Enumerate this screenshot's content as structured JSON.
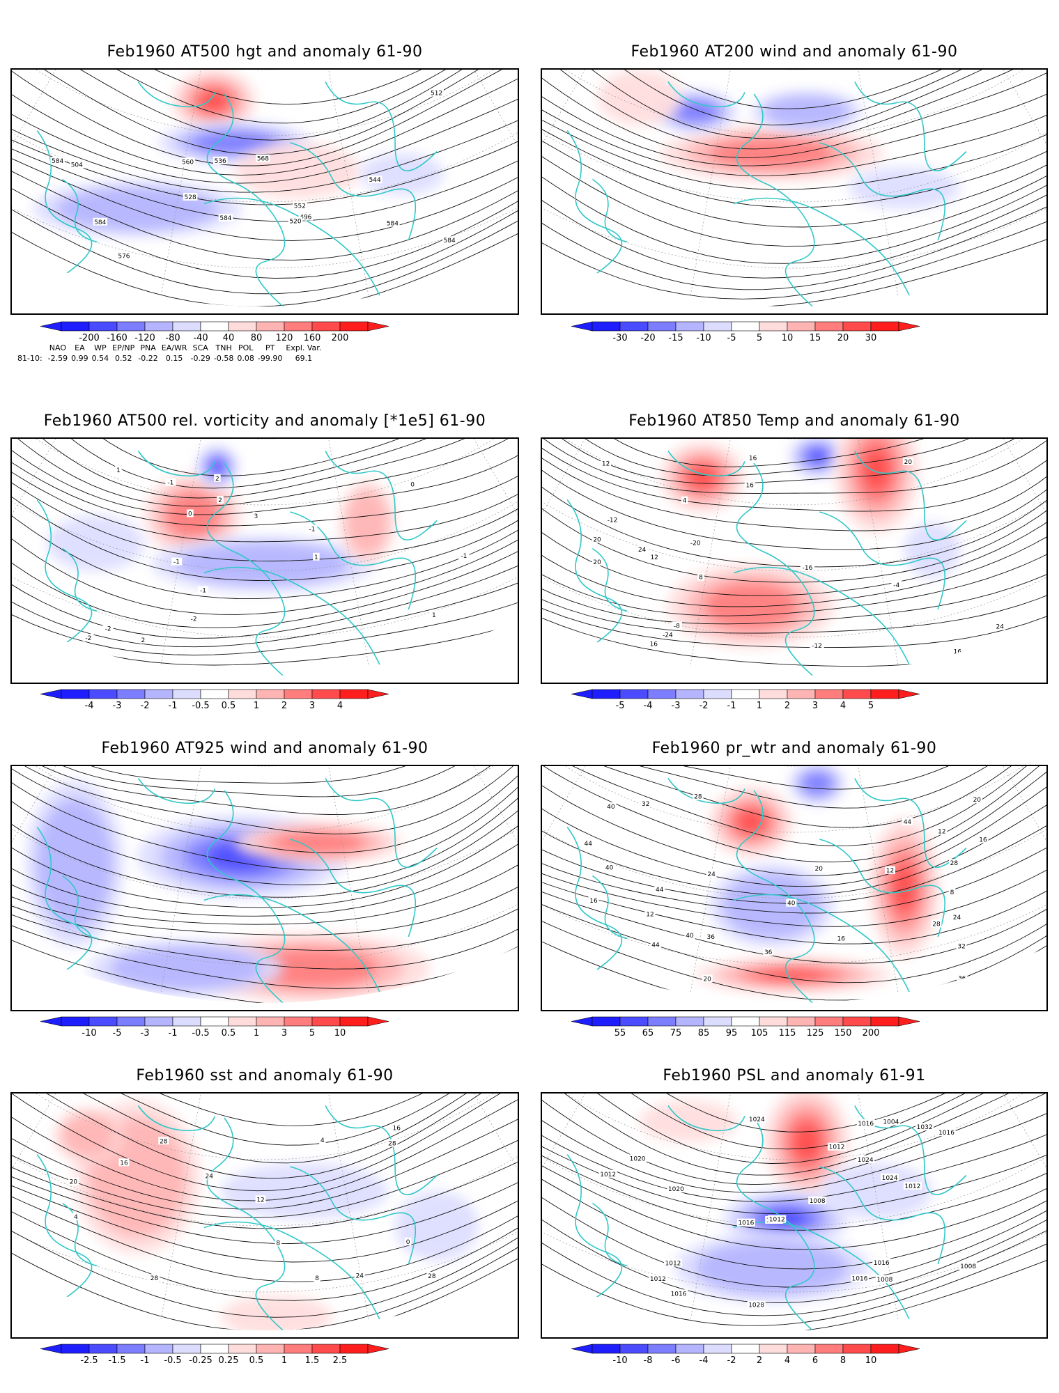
{
  "colors": {
    "coast": "#30c8c8",
    "contour": "#111111",
    "frame": "#000000",
    "scale": [
      "#1e1eff",
      "#4b4bff",
      "#7d7dff",
      "#b4b4ff",
      "#dcdcff",
      "#ffffff",
      "#ffdcdc",
      "#ffb4b4",
      "#ff7d7d",
      "#ff4b4b",
      "#ff1e1e"
    ]
  },
  "panels": [
    {
      "id": "p1",
      "title": "Feb1960 AT500 hgt and anomaly 61-90",
      "colorbar_ticks": [
        "-200",
        "-160",
        "-120",
        "-80",
        "-40",
        "40",
        "80",
        "120",
        "160",
        "200"
      ],
      "contour_labels": [
        "496",
        "504",
        "512",
        "520",
        "528",
        "536",
        "544",
        "552",
        "560",
        "568",
        "576",
        "584",
        "584",
        "584",
        "584",
        "584"
      ],
      "anomalies": [
        {
          "sign": "pos",
          "level": 4
        },
        {
          "sign": "neg",
          "level": 3
        },
        {
          "sign": "neg",
          "level": 2
        },
        {
          "sign": "pos",
          "level": 1
        },
        {
          "sign": "neg",
          "level": 1
        }
      ]
    },
    {
      "id": "p2",
      "title": "Feb1960 AT200 wind and anomaly 61-90",
      "colorbar_ticks": [
        "-30",
        "-20",
        "-15",
        "-10",
        "-5",
        "5",
        "10",
        "15",
        "20",
        "30"
      ],
      "contour_labels": [],
      "anomalies": [
        {
          "sign": "pos",
          "level": 3
        },
        {
          "sign": "neg",
          "level": 3
        },
        {
          "sign": "neg",
          "level": 2
        },
        {
          "sign": "pos",
          "level": 1
        },
        {
          "sign": "neg",
          "level": 1
        }
      ]
    },
    {
      "id": "p3",
      "title": "Feb1960 AT500 rel. vorticity and anomaly [*1e5] 61-90",
      "colorbar_ticks": [
        "-4",
        "-3",
        "-2",
        "-1",
        "-0.5",
        "0.5",
        "1",
        "2",
        "3",
        "4"
      ],
      "contour_labels": [
        "-2",
        "2",
        "3",
        "2",
        "1",
        "-1",
        "-2",
        "-1",
        "-1",
        "-1",
        "0",
        "0",
        "-2",
        "2",
        "1",
        "-1",
        "1"
      ],
      "anomalies": [
        {
          "sign": "pos",
          "level": 3
        },
        {
          "sign": "neg",
          "level": 4
        },
        {
          "sign": "neg",
          "level": 2
        },
        {
          "sign": "pos",
          "level": 2
        },
        {
          "sign": "neg",
          "level": 1
        }
      ]
    },
    {
      "id": "p4",
      "title": "Feb1960 AT850 Temp and anomaly 61-90",
      "colorbar_ticks": [
        "-5",
        "-4",
        "-3",
        "-2",
        "-1",
        "1",
        "2",
        "3",
        "4",
        "5"
      ],
      "contour_labels": [
        "-24",
        "-12",
        "-20",
        "-16",
        "-12",
        "-8",
        "-4",
        "4",
        "8",
        "12",
        "16",
        "20",
        "24",
        "16",
        "20",
        "24",
        "20",
        "16",
        "12",
        "16"
      ],
      "anomalies": [
        {
          "sign": "pos",
          "level": 4
        },
        {
          "sign": "neg",
          "level": 4
        },
        {
          "sign": "pos",
          "level": 4
        },
        {
          "sign": "pos",
          "level": 3
        },
        {
          "sign": "neg",
          "level": 1
        }
      ]
    },
    {
      "id": "p5",
      "title": "Feb1960 AT925 wind and anomaly 61-90",
      "colorbar_ticks": [
        "-10",
        "-5",
        "-3",
        "-1",
        "-0.5",
        "0.5",
        "1",
        "3",
        "5",
        "10"
      ],
      "contour_labels": [],
      "anomalies": [
        {
          "sign": "neg",
          "level": 4
        },
        {
          "sign": "pos",
          "level": 3
        },
        {
          "sign": "neg",
          "level": 2
        },
        {
          "sign": "pos",
          "level": 3
        },
        {
          "sign": "neg",
          "level": 2
        }
      ]
    },
    {
      "id": "p6",
      "title": "Feb1960 pr_wtr and anomaly 61-90",
      "colorbar_ticks": [
        "55",
        "65",
        "75",
        "85",
        "95",
        "105",
        "115",
        "125",
        "150",
        "200"
      ],
      "contour_labels": [
        "20",
        "24",
        "28",
        "44",
        "32",
        "36",
        "40",
        "44",
        "40",
        "16",
        "20",
        "16",
        "12",
        "8",
        "12",
        "16",
        "20",
        "24",
        "28",
        "32",
        "36",
        "40",
        "44",
        "44",
        "36",
        "40",
        "28",
        "12"
      ],
      "anomalies": [
        {
          "sign": "pos",
          "level": 4
        },
        {
          "sign": "neg",
          "level": 3
        },
        {
          "sign": "pos",
          "level": 4
        },
        {
          "sign": "neg",
          "level": 2
        },
        {
          "sign": "pos",
          "level": 4
        }
      ]
    },
    {
      "id": "p7",
      "title": "Feb1960 sst and anomaly 61-90",
      "colorbar_ticks": [
        "-2.5",
        "-1.5",
        "-1",
        "-0.5",
        "-0.25",
        "0.25",
        "0.5",
        "1",
        "1.5",
        "2.5"
      ],
      "contour_labels": [
        "28",
        "4",
        "8",
        "12",
        "16",
        "20",
        "24",
        "28",
        "28",
        "0",
        "4",
        "8",
        "16",
        "24",
        "28"
      ],
      "anomalies": [
        {
          "sign": "pos",
          "level": 2
        },
        {
          "sign": "pos",
          "level": 2
        },
        {
          "sign": "neg",
          "level": 1
        },
        {
          "sign": "neg",
          "level": 1
        },
        {
          "sign": "pos",
          "level": 1
        }
      ]
    },
    {
      "id": "p8",
      "title": "Feb1960 PSL and anomaly 61-91",
      "colorbar_ticks": [
        "-10",
        "-8",
        "-6",
        "-4",
        "-2",
        "2",
        "4",
        "6",
        "8",
        "10"
      ],
      "contour_labels": [
        "1024",
        "1020",
        "1028",
        "1032",
        "1024",
        "1016",
        "1016",
        "1012",
        "1016",
        "1004",
        "1008",
        "1008",
        "1012",
        "1016",
        "1016",
        "1012",
        "1008",
        "1012",
        "1016",
        "1020",
        "1024",
        "1012",
        "1008",
        "1012"
      ],
      "anomalies": [
        {
          "sign": "pos",
          "level": 4
        },
        {
          "sign": "neg",
          "level": 4
        },
        {
          "sign": "neg",
          "level": 2
        },
        {
          "sign": "pos",
          "level": 1
        },
        {
          "sign": "neg",
          "level": 1
        }
      ]
    }
  ],
  "indices": {
    "headers": [
      "NAO",
      "EA",
      "WP",
      "EP/NP",
      "PNA",
      "EA/WR",
      "SCA",
      "TNH",
      "POL",
      "PT",
      "Expl. Var."
    ],
    "row_label": "81-10:",
    "values": [
      "-2.59",
      "0.99",
      "0.54",
      "0.52",
      "-0.22",
      "0.15",
      "-0.29",
      "-0.58",
      "0.08",
      "-99.90",
      "69.1"
    ]
  }
}
